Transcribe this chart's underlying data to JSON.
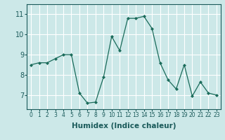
{
  "x": [
    0,
    1,
    2,
    3,
    4,
    5,
    6,
    7,
    8,
    9,
    10,
    11,
    12,
    13,
    14,
    15,
    16,
    17,
    18,
    19,
    20,
    21,
    22,
    23
  ],
  "y": [
    8.5,
    8.6,
    8.6,
    8.8,
    9.0,
    9.0,
    7.1,
    6.6,
    6.65,
    7.9,
    9.9,
    9.2,
    10.8,
    10.8,
    10.9,
    10.3,
    8.6,
    7.75,
    7.3,
    8.5,
    6.95,
    7.65,
    7.1,
    7.0
  ],
  "xlim": [
    -0.5,
    23.5
  ],
  "ylim": [
    6.3,
    11.5
  ],
  "yticks": [
    7,
    8,
    9,
    10,
    11
  ],
  "xticks": [
    0,
    1,
    2,
    3,
    4,
    5,
    6,
    7,
    8,
    9,
    10,
    11,
    12,
    13,
    14,
    15,
    16,
    17,
    18,
    19,
    20,
    21,
    22,
    23
  ],
  "xlabel": "Humidex (Indice chaleur)",
  "line_color": "#1a6b5a",
  "marker": "D",
  "marker_size": 2.0,
  "bg_color": "#cce8e8",
  "grid_color": "#ffffff",
  "xlabel_fontsize": 7.5,
  "xtick_fontsize": 5.5,
  "ytick_fontsize": 7.0
}
